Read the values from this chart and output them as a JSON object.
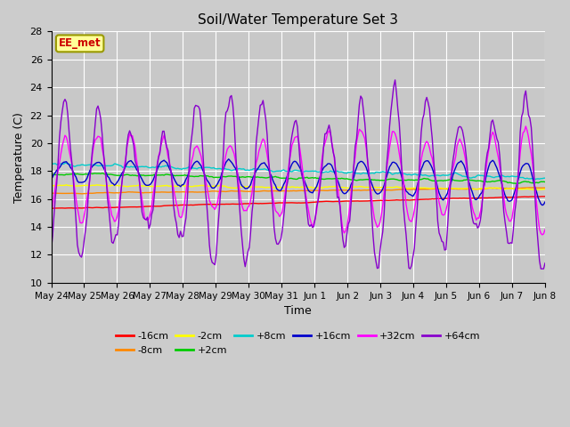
{
  "title": "Soil/Water Temperature Set 3",
  "xlabel": "Time",
  "ylabel": "Temperature (C)",
  "ylim": [
    10,
    28
  ],
  "yticks": [
    10,
    12,
    14,
    16,
    18,
    20,
    22,
    24,
    26,
    28
  ],
  "fig_bg": "#cccccc",
  "plot_bg": "#c8c8c8",
  "annotation_text": "EE_met",
  "annotation_color": "#cc0000",
  "annotation_bg": "#ffff99",
  "annotation_border": "#999900",
  "x_tick_labels": [
    "May 24",
    "May 25",
    "May 26",
    "May 27",
    "May 28",
    "May 29",
    "May 30",
    "May 31",
    "Jun 1",
    "Jun 2",
    "Jun 3",
    "Jun 4",
    "Jun 5",
    "Jun 6",
    "Jun 7",
    "Jun 8"
  ],
  "series": [
    {
      "label": "-16cm",
      "color": "#ff0000"
    },
    {
      "label": "-8cm",
      "color": "#ff8800"
    },
    {
      "label": "-2cm",
      "color": "#ffff00"
    },
    {
      "label": "+2cm",
      "color": "#00cc00"
    },
    {
      "label": "+8cm",
      "color": "#00cccc"
    },
    {
      "label": "+16cm",
      "color": "#0000cc"
    },
    {
      "label": "+32cm",
      "color": "#ff00ff"
    },
    {
      "label": "+64cm",
      "color": "#8800cc"
    }
  ]
}
